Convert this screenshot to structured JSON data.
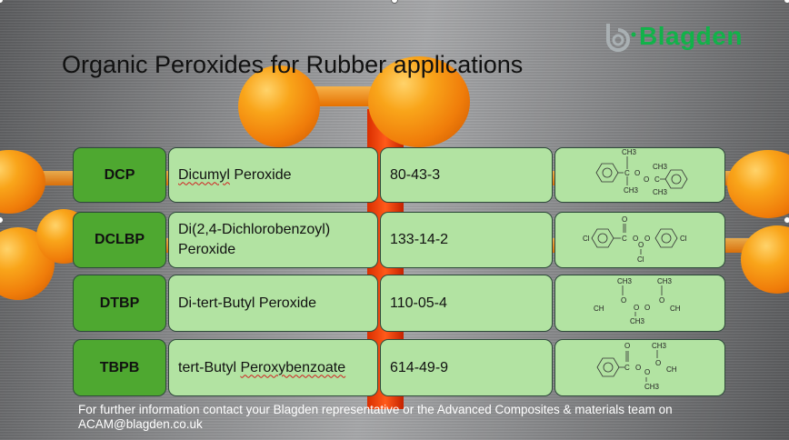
{
  "slide": {
    "title": "Organic Peroxides for Rubber applications",
    "logo": {
      "text": "Blagden",
      "color": "#12b24a"
    },
    "rows": [
      {
        "code": "DCP",
        "name": "Dicumyl Peroxide",
        "name_pre": "",
        "name_flag": "Dicumyl",
        "name_post": " Peroxide",
        "cas": "80-43-3",
        "structure": {
          "labels": [
            "CH3",
            "C",
            "O",
            "O",
            "C",
            "CH3",
            "CH3",
            "CH3"
          ]
        }
      },
      {
        "code": "DCLBP",
        "name": "Di(2,4-Dichlorobenzoyl) Peroxide",
        "name_pre": "Di(2,4-Dichlorobenzoyl) Peroxide",
        "name_flag": "",
        "name_post": "",
        "cas": "133-14-2",
        "structure": {
          "labels": [
            "Cl",
            "O",
            "C",
            "O",
            "O",
            "O",
            "Cl",
            "Cl"
          ]
        }
      },
      {
        "code": "DTBP",
        "name": "Di-tert-Butyl Peroxide",
        "name_pre": "Di-tert-Butyl Peroxide",
        "name_flag": "",
        "name_post": "",
        "cas": "110-05-4",
        "structure": {
          "labels": [
            "CH3",
            "CH3",
            "CH",
            "O",
            "O",
            "O",
            "O",
            "CH",
            "CH3"
          ]
        }
      },
      {
        "code": "TBPB",
        "name": "tert-Butyl Peroxybenzoate",
        "name_pre": "tert-Butyl ",
        "name_flag": "Peroxybenzoate",
        "name_post": "",
        "cas": "614-49-9",
        "structure": {
          "labels": [
            "O",
            "C",
            "O",
            "O",
            "CH3",
            "O",
            "CH",
            "CH3"
          ]
        }
      }
    ],
    "footer": "For further information contact your Blagden representative or the Advanced Composites & materials team on ACAM@blagden.co.uk",
    "colors": {
      "code_cell": "#4ea830",
      "cell": "#b2e3a2",
      "logo": "#12b24a"
    }
  }
}
